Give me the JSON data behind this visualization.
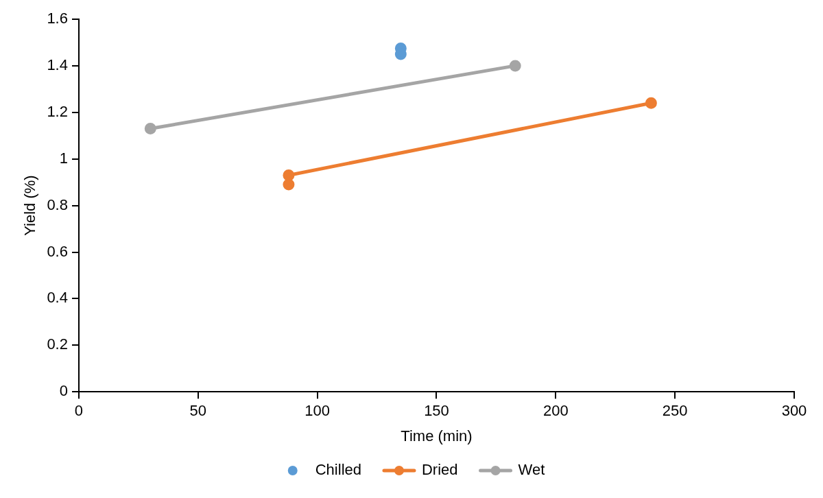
{
  "chart_data": {
    "type": "line",
    "xlabel": "Time (min)",
    "ylabel": "Yield (%)",
    "xlim": [
      0,
      300
    ],
    "xticks": [
      0,
      50,
      100,
      150,
      200,
      250,
      300
    ],
    "ylim": [
      0,
      1.6
    ],
    "yticks": [
      0,
      {
        "value": 0.2,
        "label": "0.2"
      },
      {
        "value": 0.4,
        "label": "0.4"
      },
      {
        "value": 0.6,
        "label": "0.6"
      },
      {
        "value": 0.8,
        "label": "0.8"
      },
      1,
      {
        "value": 1.2,
        "label": "1.2"
      },
      {
        "value": 1.4,
        "label": "1.4"
      },
      {
        "value": 1.6,
        "label": "1.6"
      }
    ],
    "grid": false,
    "legend": "bottom",
    "marker": "circle",
    "line_style": "solid",
    "series": [
      {
        "name": "Chilled",
        "type": "scatter",
        "color": "#5b9bd5",
        "x": [
          135,
          135
        ],
        "values": [
          1.475,
          1.45
        ]
      },
      {
        "name": "Dried",
        "color": "#ed7d31",
        "x": [
          88,
          88,
          240
        ],
        "values": [
          0.89,
          0.93,
          1.24
        ]
      },
      {
        "name": "Wet",
        "color": "#a5a5a5",
        "x": [
          30,
          183
        ],
        "values": [
          1.13,
          1.4
        ]
      }
    ]
  }
}
